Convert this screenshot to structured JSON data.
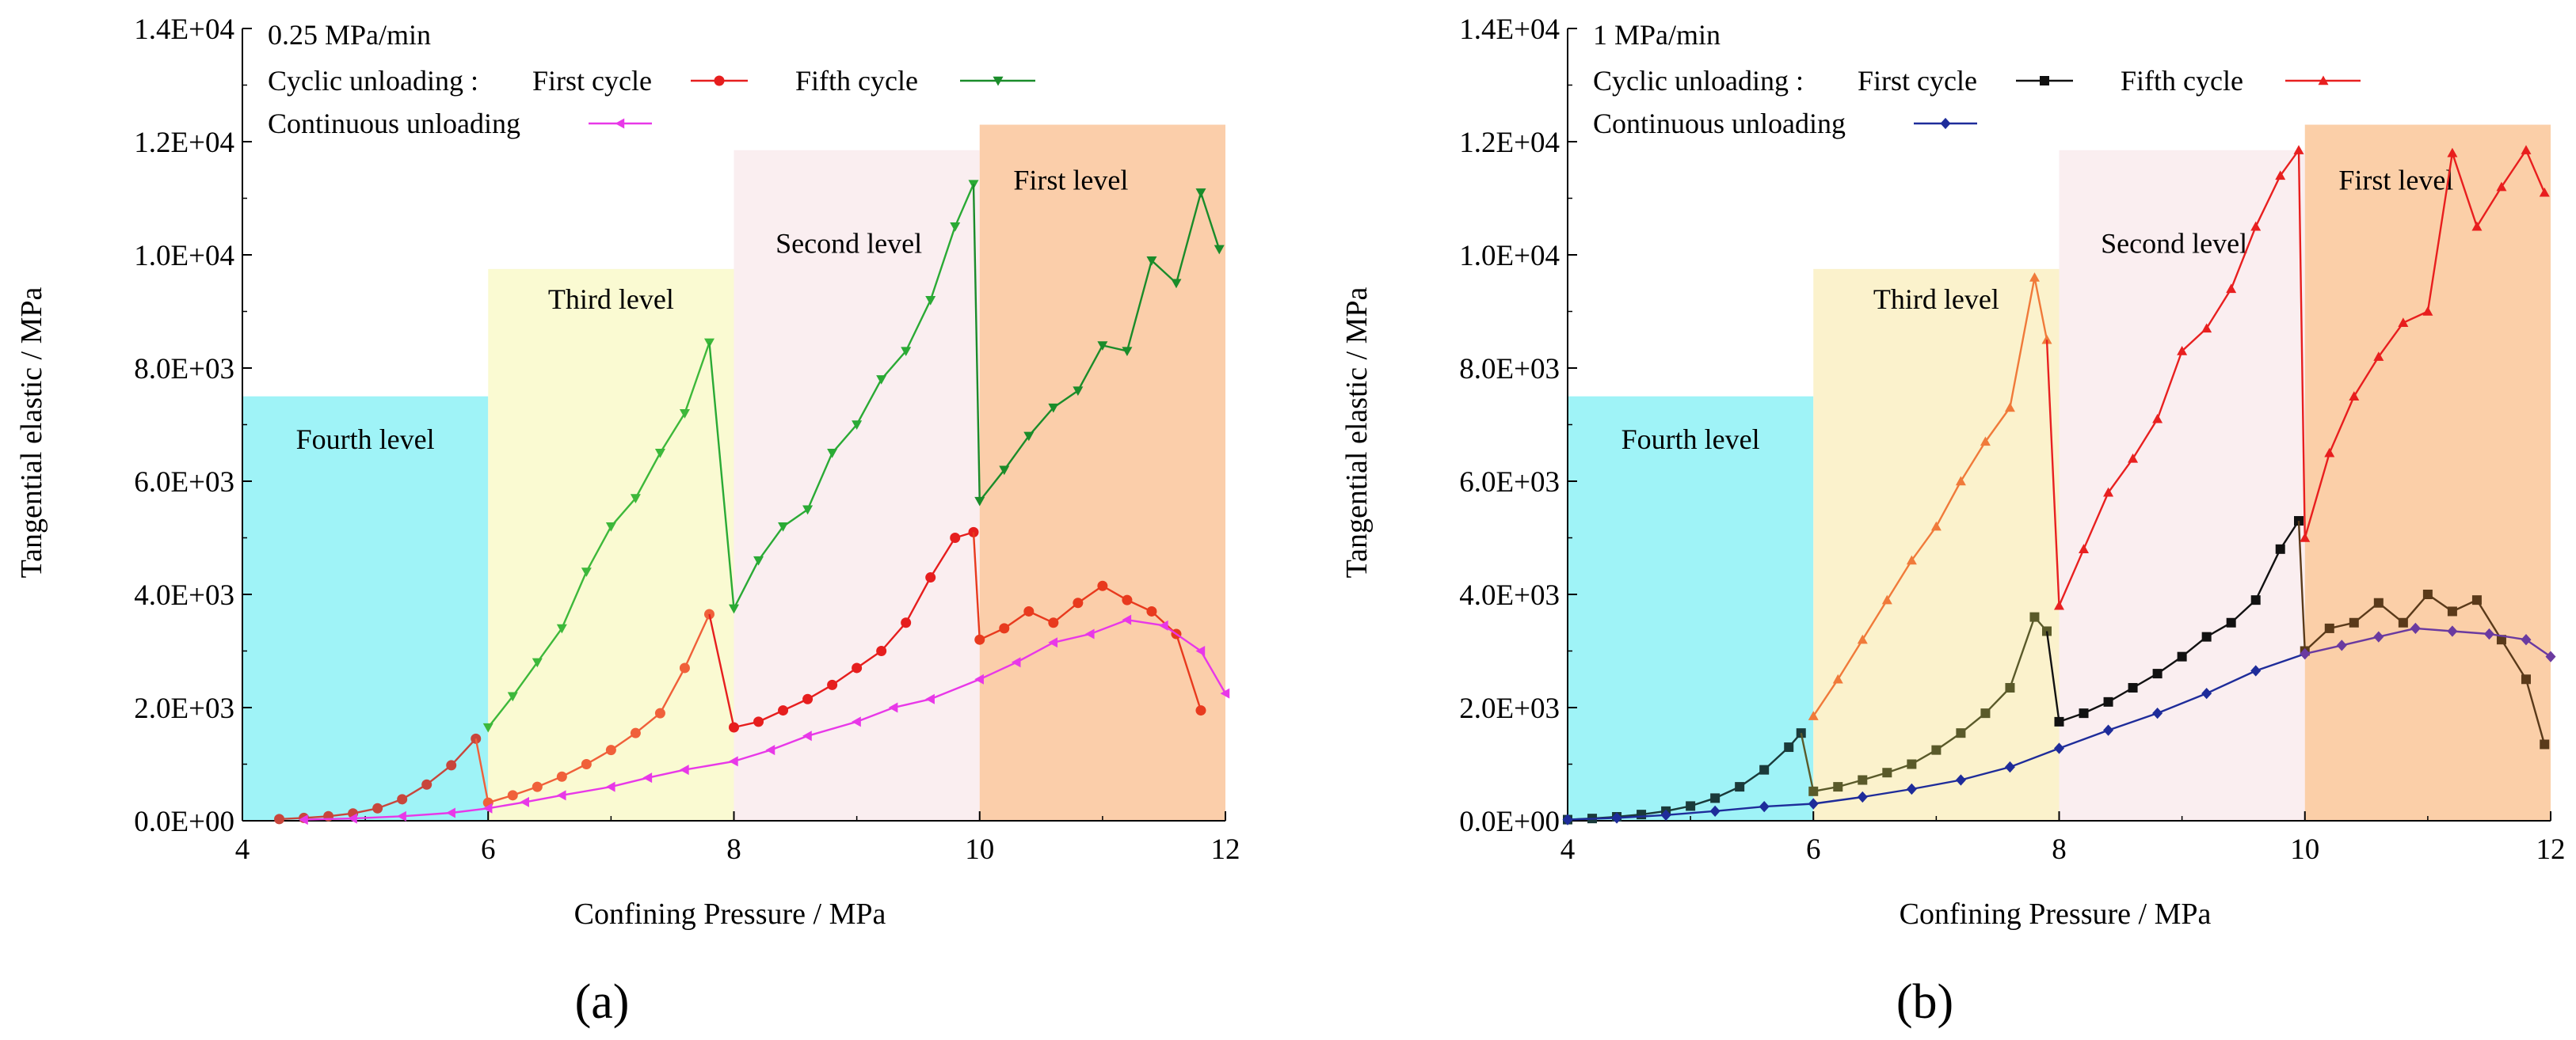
{
  "chart_data": [
    {
      "type": "line",
      "panel_label": "(a)",
      "rate_label": "0.25 MPa/min",
      "xlabel": "Confining Pressure / MPa",
      "ylabel": "Tangential elastic / MPa",
      "xlim": [
        4,
        12
      ],
      "ylim": [
        0,
        14000
      ],
      "xticks": [
        "4",
        "6",
        "8",
        "10",
        "12"
      ],
      "yticks": [
        "0.0E+00",
        "2.0E+03",
        "4.0E+03",
        "6.0E+03",
        "8.0E+03",
        "1.0E+04",
        "1.2E+04",
        "1.4E+04"
      ],
      "legend_prefix": "Cyclic unloading : ",
      "regions": [
        {
          "label": "Fourth level",
          "x0": 4,
          "x1": 6,
          "ymax": 7500,
          "color": "#9ff3f7"
        },
        {
          "label": "Third level",
          "x0": 6,
          "x1": 8,
          "ymax": 9750,
          "color": "#fafad2"
        },
        {
          "label": "Second level",
          "x0": 8,
          "x1": 10,
          "ymax": 11850,
          "color": "#faeef0"
        },
        {
          "label": "First level",
          "x0": 10,
          "x1": 12,
          "ymax": 12300,
          "color": "#fbceaa"
        }
      ],
      "series": [
        {
          "name": "First cycle",
          "marker": "circle",
          "colors": [
            "#c8463c",
            "#f0603a",
            "#e61e1e",
            "#e83a1e"
          ],
          "segments": [
            {
              "x": [
                4.3,
                4.5,
                4.7,
                4.9,
                5.1,
                5.3,
                5.5,
                5.7,
                5.9
              ],
              "y": [
                30,
                50,
                80,
                130,
                220,
                380,
                640,
                980,
                1450
              ]
            },
            {
              "x": [
                6.0,
                6.2,
                6.4,
                6.6,
                6.8,
                7.0,
                7.2,
                7.4,
                7.6,
                7.8
              ],
              "y": [
                320,
                450,
                600,
                780,
                1000,
                1250,
                1550,
                1900,
                2700,
                3650
              ]
            },
            {
              "x": [
                8.0,
                8.2,
                8.4,
                8.6,
                8.8,
                9.0,
                9.2,
                9.4,
                9.6,
                9.8,
                9.95
              ],
              "y": [
                1650,
                1750,
                1950,
                2150,
                2400,
                2700,
                3000,
                3500,
                4300,
                5000,
                5100
              ]
            },
            {
              "x": [
                10.0,
                10.2,
                10.4,
                10.6,
                10.8,
                11.0,
                11.2,
                11.4,
                11.6,
                11.8
              ],
              "y": [
                3200,
                3400,
                3700,
                3500,
                3850,
                4150,
                3900,
                3700,
                3300,
                1950
              ]
            }
          ]
        },
        {
          "name": "Fifth cycle",
          "marker": "tri-down",
          "colors": [
            "#3db83a",
            "#2aaa35",
            "#1a8c2a",
            "#5a8c1a"
          ],
          "segments": [
            {
              "x": [
                6.0,
                6.2,
                6.4,
                6.6,
                6.8,
                7.0,
                7.2,
                7.4,
                7.6,
                7.8
              ],
              "y": [
                1650,
                2200,
                2800,
                3400,
                4400,
                5200,
                5700,
                6500,
                7200,
                8450
              ]
            },
            {
              "x": [
                8.0,
                8.2,
                8.4,
                8.6,
                8.8,
                9.0,
                9.2,
                9.4,
                9.6,
                9.8,
                9.95
              ],
              "y": [
                3750,
                4600,
                5200,
                5500,
                6500,
                7000,
                7800,
                8300,
                9200,
                10500,
                11250
              ]
            },
            {
              "x": [
                10.0,
                10.2,
                10.4,
                10.6,
                10.8,
                11.0,
                11.2,
                11.4,
                11.6,
                11.8,
                11.95
              ],
              "y": [
                5650,
                6200,
                6800,
                7300,
                7600,
                8400,
                8300,
                9900,
                9500,
                11100,
                10100
              ]
            }
          ]
        },
        {
          "name": "Continuous unloading",
          "marker": "tri-left",
          "colors": [
            "#e838e8"
          ],
          "segments": [
            {
              "x": [
                4.5,
                4.9,
                5.3,
                5.7,
                6.0,
                6.3,
                6.6,
                7.0,
                7.3,
                7.6,
                8.0,
                8.3,
                8.6,
                9.0,
                9.3,
                9.6,
                10.0,
                10.3,
                10.6,
                10.9,
                11.2,
                11.5,
                11.8,
                12.0
              ],
              "y": [
                20,
                40,
                80,
                140,
                220,
                330,
                450,
                600,
                760,
                900,
                1050,
                1250,
                1500,
                1750,
                2000,
                2150,
                2500,
                2800,
                3150,
                3300,
                3550,
                3450,
                3000,
                2250
              ]
            }
          ]
        }
      ]
    },
    {
      "type": "line",
      "panel_label": "(b)",
      "rate_label": "1 MPa/min",
      "xlabel": "Confining Pressure / MPa",
      "ylabel": "Tangential elastic / MPa",
      "xlim": [
        4,
        12
      ],
      "ylim": [
        0,
        14000
      ],
      "xticks": [
        "4",
        "6",
        "8",
        "10",
        "12"
      ],
      "yticks": [
        "0.0E+00",
        "2.0E+03",
        "4.0E+03",
        "6.0E+03",
        "8.0E+03",
        "1.0E+04",
        "1.2E+04",
        "1.4E+04"
      ],
      "legend_prefix": "Cyclic unloading : ",
      "regions": [
        {
          "label": "Fourth level",
          "x0": 4,
          "x1": 6,
          "ymax": 7500,
          "color": "#9ff3f7"
        },
        {
          "label": "Third level",
          "x0": 6,
          "x1": 8,
          "ymax": 9750,
          "color": "#fbf2cc"
        },
        {
          "label": "Second level",
          "x0": 8,
          "x1": 10,
          "ymax": 11850,
          "color": "#faeef0"
        },
        {
          "label": "First level",
          "x0": 10,
          "x1": 12,
          "ymax": 12300,
          "color": "#fbcfa8"
        }
      ],
      "series": [
        {
          "name": "First cycle",
          "marker": "square",
          "colors": [
            "#1a3a3a",
            "#5a5a2a",
            "#111111",
            "#5a3a1a"
          ],
          "segments": [
            {
              "x": [
                4.0,
                4.2,
                4.4,
                4.6,
                4.8,
                5.0,
                5.2,
                5.4,
                5.6,
                5.8,
                5.9
              ],
              "y": [
                20,
                40,
                70,
                110,
                170,
                260,
                400,
                600,
                900,
                1300,
                1550
              ]
            },
            {
              "x": [
                6.0,
                6.2,
                6.4,
                6.6,
                6.8,
                7.0,
                7.2,
                7.4,
                7.6,
                7.8,
                7.9
              ],
              "y": [
                520,
                600,
                720,
                850,
                1000,
                1250,
                1550,
                1900,
                2350,
                3600,
                3350
              ]
            },
            {
              "x": [
                8.0,
                8.2,
                8.4,
                8.6,
                8.8,
                9.0,
                9.2,
                9.4,
                9.6,
                9.8,
                9.95
              ],
              "y": [
                1750,
                1900,
                2100,
                2350,
                2600,
                2900,
                3250,
                3500,
                3900,
                4800,
                5300
              ]
            },
            {
              "x": [
                10.0,
                10.2,
                10.4,
                10.6,
                10.8,
                11.0,
                11.2,
                11.4,
                11.6,
                11.8,
                11.95
              ],
              "y": [
                3000,
                3400,
                3500,
                3850,
                3500,
                4000,
                3700,
                3900,
                3200,
                2500,
                1350
              ]
            }
          ]
        },
        {
          "name": "Fifth cycle",
          "marker": "tri-up",
          "colors": [
            "#f07a3a",
            "#e82020",
            "#e81e1e"
          ],
          "segments": [
            {
              "x": [
                6.0,
                6.2,
                6.4,
                6.6,
                6.8,
                7.0,
                7.2,
                7.4,
                7.6,
                7.8,
                7.9
              ],
              "y": [
                1850,
                2500,
                3200,
                3900,
                4600,
                5200,
                6000,
                6700,
                7300,
                9600,
                8500
              ]
            },
            {
              "x": [
                8.0,
                8.2,
                8.4,
                8.6,
                8.8,
                9.0,
                9.2,
                9.4,
                9.6,
                9.8,
                9.95
              ],
              "y": [
                3800,
                4800,
                5800,
                6400,
                7100,
                8300,
                8700,
                9400,
                10500,
                11400,
                11850
              ]
            },
            {
              "x": [
                10.0,
                10.2,
                10.4,
                10.6,
                10.8,
                11.0,
                11.2,
                11.4,
                11.6,
                11.8,
                11.95
              ],
              "y": [
                5000,
                6500,
                7500,
                8200,
                8800,
                9000,
                11800,
                10500,
                11200,
                11850,
                11100
              ]
            }
          ]
        },
        {
          "name": "Continuous unloading",
          "marker": "diamond",
          "colors": [
            "#1e2c9a",
            "#6a3aa0"
          ],
          "segments": [
            {
              "x": [
                4.0,
                4.4,
                4.8,
                5.2,
                5.6,
                6.0,
                6.4,
                6.8,
                7.2,
                7.6,
                8.0,
                8.4,
                8.8,
                9.2,
                9.6,
                10.0
              ],
              "y": [
                20,
                50,
                100,
                170,
                250,
                300,
                420,
                560,
                720,
                950,
                1280,
                1600,
                1900,
                2250,
                2650,
                2950
              ]
            },
            {
              "x": [
                10.0,
                10.3,
                10.6,
                10.9,
                11.2,
                11.5,
                11.8,
                12.0
              ],
              "y": [
                2950,
                3100,
                3250,
                3400,
                3350,
                3300,
                3200,
                2900
              ]
            }
          ]
        }
      ]
    }
  ]
}
